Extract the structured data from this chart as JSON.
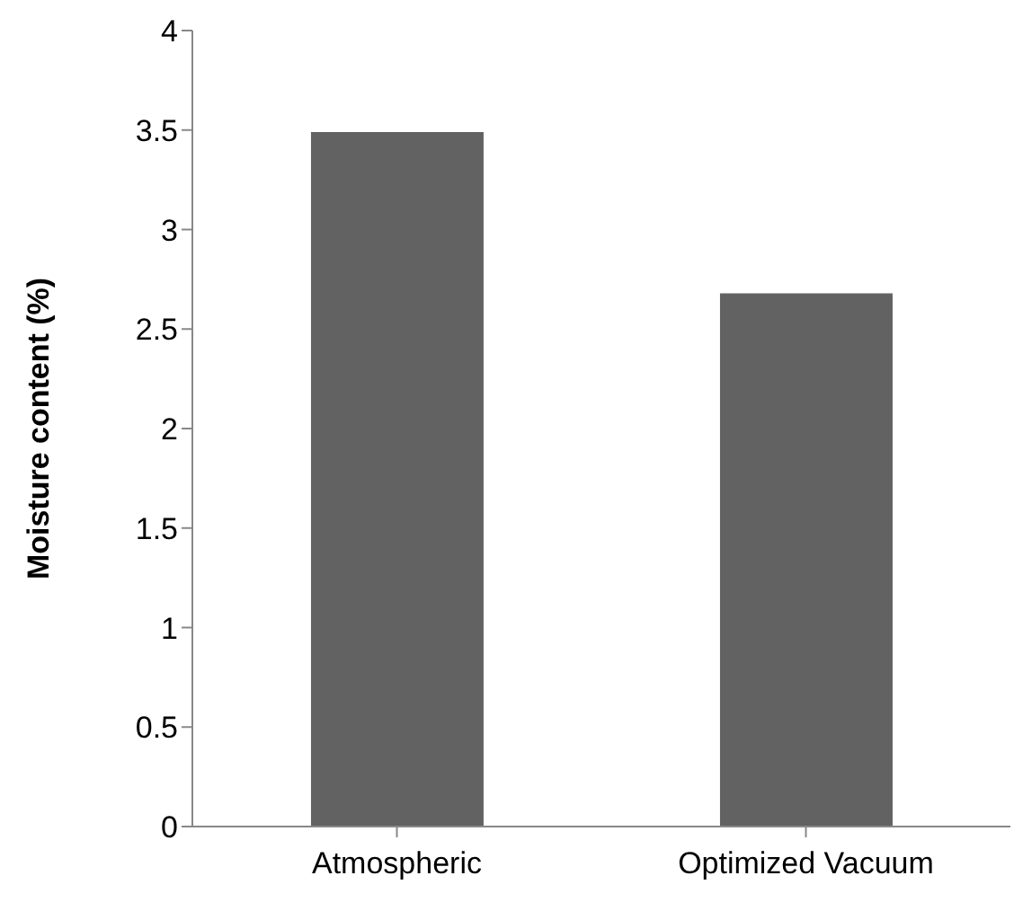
{
  "chart_data": {
    "type": "bar",
    "ylabel": "Moisture content (%)",
    "categories": [
      "Atmospheric",
      "Optimized Vacuum"
    ],
    "values": [
      3.49,
      2.68
    ],
    "color": "#626262",
    "ylim": [
      0,
      4
    ],
    "yticks": [
      0,
      0.5,
      1,
      1.5,
      2,
      2.5,
      3,
      3.5,
      4
    ],
    "grid": false,
    "legend": false
  }
}
